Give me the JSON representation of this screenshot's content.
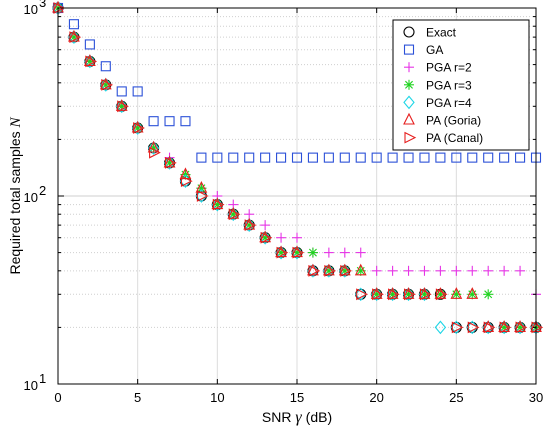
{
  "chart_data": {
    "type": "scatter",
    "xlabel": {
      "prefix": "SNR",
      "symbol": "γ",
      "suffix": "(dB)"
    },
    "ylabel": {
      "text": "Required total samples",
      "symbol": "N"
    },
    "xlim": [
      0,
      30
    ],
    "ylim": [
      10,
      1000
    ],
    "yscale": "log",
    "grid": true,
    "legend_position": "top-right",
    "x_ticks": [
      "0",
      "5",
      "10",
      "15",
      "20",
      "25",
      "30"
    ],
    "y_ticks": [
      {
        "base": "10",
        "exp": "1"
      },
      {
        "base": "10",
        "exp": "2"
      },
      {
        "base": "10",
        "exp": "3"
      }
    ],
    "series": [
      {
        "name": "Exact",
        "marker": "circle",
        "color": "#000000",
        "points": [
          [
            0,
            1000
          ],
          [
            1,
            700
          ],
          [
            2,
            520
          ],
          [
            3,
            390
          ],
          [
            4,
            300
          ],
          [
            5,
            230
          ],
          [
            6,
            180
          ],
          [
            7,
            150
          ],
          [
            8,
            120
          ],
          [
            9,
            100
          ],
          [
            10,
            90
          ],
          [
            11,
            80
          ],
          [
            12,
            70
          ],
          [
            13,
            60
          ],
          [
            14,
            50
          ],
          [
            15,
            50
          ],
          [
            16,
            40
          ],
          [
            17,
            40
          ],
          [
            18,
            40
          ],
          [
            19,
            30
          ],
          [
            20,
            30
          ],
          [
            21,
            30
          ],
          [
            22,
            30
          ],
          [
            23,
            30
          ],
          [
            24,
            30
          ],
          [
            25,
            20
          ],
          [
            26,
            20
          ],
          [
            27,
            20
          ],
          [
            28,
            20
          ],
          [
            29,
            20
          ],
          [
            30,
            20
          ]
        ]
      },
      {
        "name": "GA",
        "marker": "square",
        "color": "#2b50d8",
        "points": [
          [
            0,
            1000
          ],
          [
            1,
            820
          ],
          [
            2,
            640
          ],
          [
            3,
            490
          ],
          [
            4,
            360
          ],
          [
            5,
            360
          ],
          [
            6,
            250
          ],
          [
            7,
            250
          ],
          [
            8,
            250
          ],
          [
            9,
            160
          ],
          [
            10,
            160
          ],
          [
            11,
            160
          ],
          [
            12,
            160
          ],
          [
            13,
            160
          ],
          [
            14,
            160
          ],
          [
            15,
            160
          ],
          [
            16,
            160
          ],
          [
            17,
            160
          ],
          [
            18,
            160
          ],
          [
            19,
            160
          ],
          [
            20,
            160
          ],
          [
            21,
            160
          ],
          [
            22,
            160
          ],
          [
            23,
            160
          ],
          [
            24,
            160
          ],
          [
            25,
            160
          ],
          [
            26,
            160
          ],
          [
            27,
            160
          ],
          [
            28,
            160
          ],
          [
            29,
            160
          ],
          [
            30,
            160
          ]
        ]
      },
      {
        "name": "PGA r=2",
        "marker": "plus",
        "color": "#e633e6",
        "points": [
          [
            0,
            1000
          ],
          [
            1,
            700
          ],
          [
            2,
            520
          ],
          [
            3,
            390
          ],
          [
            4,
            300
          ],
          [
            5,
            230
          ],
          [
            6,
            180
          ],
          [
            7,
            160
          ],
          [
            8,
            130
          ],
          [
            9,
            110
          ],
          [
            10,
            100
          ],
          [
            11,
            90
          ],
          [
            12,
            80
          ],
          [
            13,
            70
          ],
          [
            14,
            60
          ],
          [
            15,
            60
          ],
          [
            16,
            50
          ],
          [
            17,
            50
          ],
          [
            18,
            50
          ],
          [
            19,
            50
          ],
          [
            20,
            40
          ],
          [
            21,
            40
          ],
          [
            22,
            40
          ],
          [
            23,
            40
          ],
          [
            24,
            40
          ],
          [
            25,
            40
          ],
          [
            26,
            40
          ],
          [
            27,
            40
          ],
          [
            28,
            40
          ],
          [
            29,
            40
          ],
          [
            30,
            30
          ]
        ]
      },
      {
        "name": "PGA r=3",
        "marker": "star",
        "color": "#1fd31f",
        "points": [
          [
            0,
            1000
          ],
          [
            1,
            700
          ],
          [
            2,
            520
          ],
          [
            3,
            390
          ],
          [
            4,
            300
          ],
          [
            5,
            230
          ],
          [
            6,
            180
          ],
          [
            7,
            150
          ],
          [
            8,
            130
          ],
          [
            9,
            110
          ],
          [
            10,
            90
          ],
          [
            11,
            80
          ],
          [
            12,
            70
          ],
          [
            13,
            60
          ],
          [
            14,
            50
          ],
          [
            15,
            50
          ],
          [
            16,
            50
          ],
          [
            17,
            40
          ],
          [
            18,
            40
          ],
          [
            19,
            40
          ],
          [
            20,
            30
          ],
          [
            21,
            30
          ],
          [
            22,
            30
          ],
          [
            23,
            30
          ],
          [
            24,
            30
          ],
          [
            25,
            30
          ],
          [
            26,
            30
          ],
          [
            27,
            30
          ],
          [
            28,
            20
          ],
          [
            29,
            20
          ],
          [
            30,
            20
          ]
        ]
      },
      {
        "name": "PGA r=4",
        "marker": "diamond",
        "color": "#1fd6e6",
        "points": [
          [
            0,
            1000
          ],
          [
            1,
            700
          ],
          [
            2,
            520
          ],
          [
            3,
            390
          ],
          [
            4,
            300
          ],
          [
            5,
            230
          ],
          [
            6,
            180
          ],
          [
            7,
            150
          ],
          [
            8,
            120
          ],
          [
            9,
            100
          ],
          [
            10,
            90
          ],
          [
            11,
            80
          ],
          [
            12,
            70
          ],
          [
            13,
            60
          ],
          [
            14,
            50
          ],
          [
            15,
            50
          ],
          [
            16,
            40
          ],
          [
            17,
            40
          ],
          [
            18,
            40
          ],
          [
            19,
            30
          ],
          [
            20,
            30
          ],
          [
            21,
            30
          ],
          [
            22,
            30
          ],
          [
            23,
            30
          ],
          [
            24,
            20
          ],
          [
            25,
            20
          ],
          [
            26,
            20
          ],
          [
            27,
            20
          ],
          [
            28,
            20
          ],
          [
            29,
            20
          ],
          [
            30,
            20
          ]
        ]
      },
      {
        "name": "PA (Goria)",
        "marker": "triangle-up",
        "color": "#e61e1e",
        "points": [
          [
            0,
            1000
          ],
          [
            1,
            700
          ],
          [
            2,
            520
          ],
          [
            3,
            390
          ],
          [
            4,
            300
          ],
          [
            5,
            230
          ],
          [
            6,
            180
          ],
          [
            7,
            150
          ],
          [
            8,
            130
          ],
          [
            9,
            110
          ],
          [
            10,
            90
          ],
          [
            11,
            80
          ],
          [
            12,
            70
          ],
          [
            13,
            60
          ],
          [
            14,
            50
          ],
          [
            15,
            50
          ],
          [
            16,
            40
          ],
          [
            17,
            40
          ],
          [
            18,
            40
          ],
          [
            19,
            40
          ],
          [
            20,
            30
          ],
          [
            21,
            30
          ],
          [
            22,
            30
          ],
          [
            23,
            30
          ],
          [
            24,
            30
          ],
          [
            25,
            30
          ],
          [
            26,
            30
          ],
          [
            27,
            20
          ],
          [
            28,
            20
          ],
          [
            29,
            20
          ],
          [
            30,
            20
          ]
        ]
      },
      {
        "name": "PA (Canal)",
        "marker": "triangle-right",
        "color": "#e61e1e",
        "points": [
          [
            0,
            1000
          ],
          [
            1,
            700
          ],
          [
            2,
            520
          ],
          [
            3,
            390
          ],
          [
            4,
            300
          ],
          [
            5,
            230
          ],
          [
            6,
            170
          ],
          [
            7,
            150
          ],
          [
            8,
            120
          ],
          [
            9,
            100
          ],
          [
            10,
            90
          ],
          [
            11,
            80
          ],
          [
            12,
            70
          ],
          [
            13,
            60
          ],
          [
            14,
            50
          ],
          [
            15,
            50
          ],
          [
            16,
            40
          ],
          [
            17,
            40
          ],
          [
            18,
            40
          ],
          [
            19,
            30
          ],
          [
            20,
            30
          ],
          [
            21,
            30
          ],
          [
            22,
            30
          ],
          [
            23,
            30
          ],
          [
            24,
            30
          ],
          [
            25,
            20
          ],
          [
            26,
            20
          ],
          [
            27,
            20
          ],
          [
            28,
            20
          ],
          [
            29,
            20
          ],
          [
            30,
            20
          ]
        ]
      }
    ]
  }
}
